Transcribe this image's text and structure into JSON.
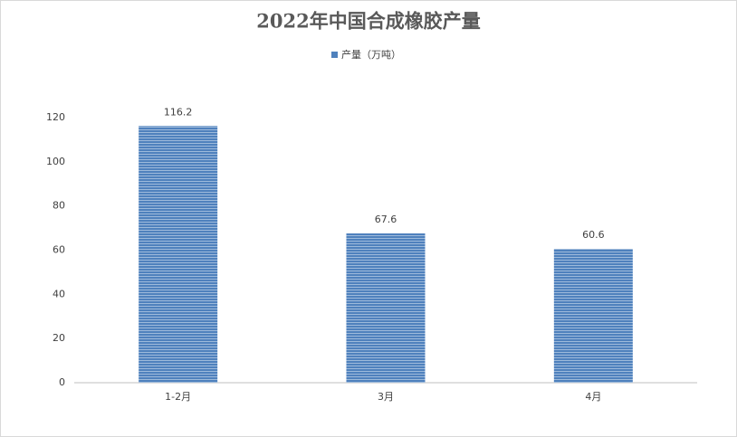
{
  "chart_data": {
    "type": "bar",
    "title": "2022年中国合成橡胶产量",
    "series": [
      {
        "name": "产量（万吨）",
        "color": "#4f81bd",
        "values": [
          116.2,
          67.6,
          60.6
        ]
      }
    ],
    "categories": [
      "1-2月",
      "3月",
      "4月"
    ],
    "ylim": [
      0,
      120
    ],
    "yticks": [
      0,
      20,
      40,
      60,
      80,
      100,
      120
    ],
    "grid": false,
    "legend": "top"
  }
}
